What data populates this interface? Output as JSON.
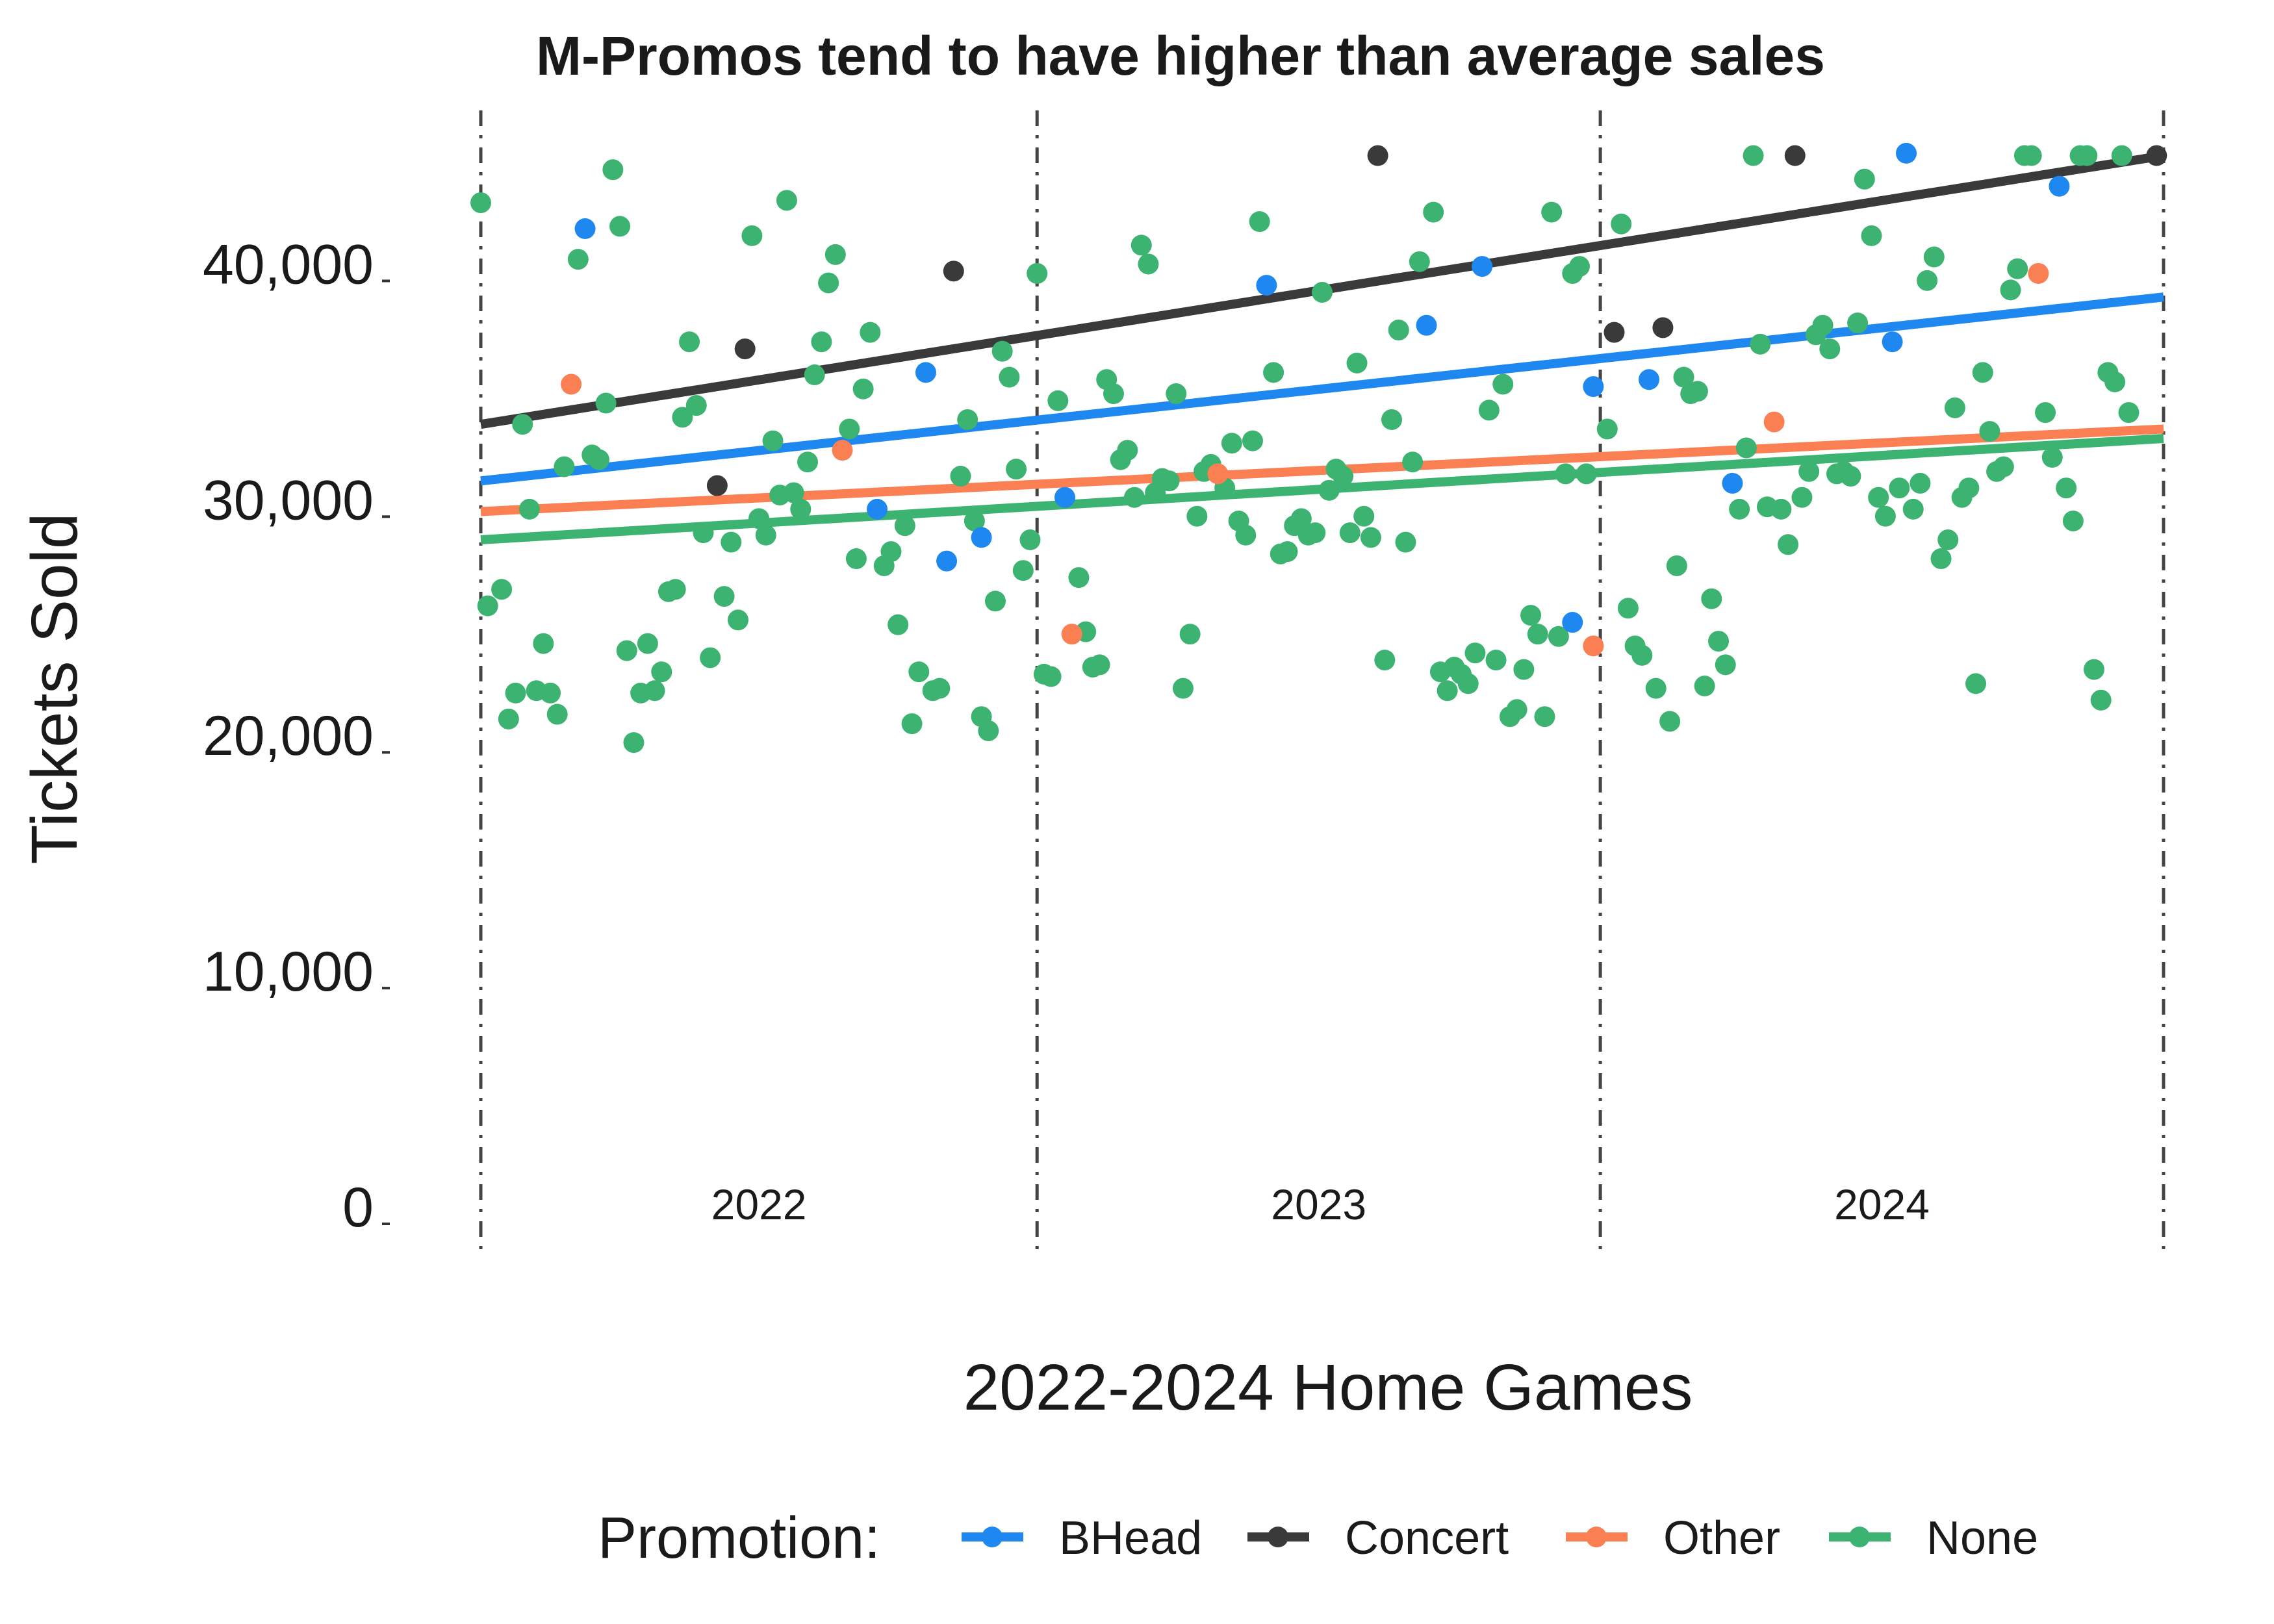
{
  "chart_data": {
    "type": "scatter",
    "title": "M-Promos tend to have higher than average sales",
    "xlabel": "2022-2024 Home Games",
    "ylabel": "Tickets Sold",
    "ylim": [
      0,
      45000
    ],
    "xlim": [
      1,
      243
    ],
    "y_ticks": [
      0,
      10000,
      20000,
      30000,
      40000
    ],
    "y_tick_labels": [
      "0",
      "10,000",
      "20,000",
      "30,000",
      "40,000"
    ],
    "season_labels": [
      "2022",
      "2023",
      "2024"
    ],
    "season_boundaries": [
      1,
      81,
      162,
      243
    ],
    "legend": {
      "title": "Promotion:",
      "position": "bottom"
    },
    "grid": false,
    "series": [
      {
        "name": "BHead",
        "color": "#1E88F0",
        "points": [
          [
            16,
            41500
          ],
          [
            58,
            29600
          ],
          [
            65,
            35400
          ],
          [
            68,
            27400
          ],
          [
            73,
            28400
          ],
          [
            85,
            30100
          ],
          [
            114,
            39100
          ],
          [
            137,
            37400
          ],
          [
            145,
            39900
          ],
          [
            158,
            24800
          ],
          [
            161,
            34800
          ],
          [
            169,
            35100
          ],
          [
            181,
            30700
          ],
          [
            206,
            44700
          ],
          [
            204,
            36700
          ],
          [
            228,
            43300
          ]
        ],
        "trend": [
          [
            1,
            30800
          ],
          [
            243,
            38600
          ]
        ]
      },
      {
        "name": "Concert",
        "color": "#3A3A3A",
        "points": [
          [
            35,
            30600
          ],
          [
            39,
            36400
          ],
          [
            69,
            39700
          ],
          [
            130,
            44600
          ],
          [
            164,
            37100
          ],
          [
            171,
            37300
          ],
          [
            190,
            44600
          ],
          [
            242,
            44600
          ]
        ],
        "trend": [
          [
            1,
            33200
          ],
          [
            243,
            44600
          ]
        ]
      },
      {
        "name": "Other",
        "color": "#FA7F53",
        "points": [
          [
            14,
            34900
          ],
          [
            53,
            32100
          ],
          [
            86,
            24300
          ],
          [
            107,
            31100
          ],
          [
            161,
            23800
          ],
          [
            187,
            33300
          ],
          [
            225,
            39600
          ]
        ],
        "trend": [
          [
            1,
            29500
          ],
          [
            243,
            33000
          ]
        ]
      },
      {
        "name": "None",
        "color": "#3CB371",
        "points": [
          [
            1,
            42600
          ],
          [
            2,
            25500
          ],
          [
            4,
            26200
          ],
          [
            5,
            20700
          ],
          [
            6,
            21800
          ],
          [
            7,
            33200
          ],
          [
            8,
            29600
          ],
          [
            9,
            21900
          ],
          [
            10,
            23900
          ],
          [
            11,
            21800
          ],
          [
            12,
            20900
          ],
          [
            13,
            31400
          ],
          [
            15,
            40200
          ],
          [
            17,
            31900
          ],
          [
            18,
            31700
          ],
          [
            19,
            34100
          ],
          [
            20,
            44000
          ],
          [
            21,
            41600
          ],
          [
            22,
            23600
          ],
          [
            23,
            19700
          ],
          [
            24,
            21800
          ],
          [
            25,
            23900
          ],
          [
            26,
            21900
          ],
          [
            27,
            22700
          ],
          [
            28,
            26100
          ],
          [
            29,
            26200
          ],
          [
            30,
            33500
          ],
          [
            31,
            36700
          ],
          [
            32,
            34000
          ],
          [
            33,
            28600
          ],
          [
            34,
            23300
          ],
          [
            36,
            25900
          ],
          [
            37,
            28200
          ],
          [
            38,
            24900
          ],
          [
            40,
            41200
          ],
          [
            41,
            29200
          ],
          [
            42,
            28500
          ],
          [
            43,
            32500
          ],
          [
            44,
            30200
          ],
          [
            45,
            42700
          ],
          [
            46,
            30300
          ],
          [
            47,
            29600
          ],
          [
            48,
            31600
          ],
          [
            49,
            35300
          ],
          [
            50,
            36700
          ],
          [
            51,
            39200
          ],
          [
            52,
            40400
          ],
          [
            54,
            33000
          ],
          [
            55,
            27500
          ],
          [
            56,
            34700
          ],
          [
            57,
            37100
          ],
          [
            59,
            27200
          ],
          [
            60,
            27800
          ],
          [
            61,
            24700
          ],
          [
            62,
            28900
          ],
          [
            63,
            20500
          ],
          [
            64,
            22700
          ],
          [
            66,
            21900
          ],
          [
            67,
            22000
          ],
          [
            70,
            31000
          ],
          [
            71,
            33400
          ],
          [
            72,
            29100
          ],
          [
            73,
            20800
          ],
          [
            74,
            20200
          ],
          [
            75,
            25700
          ],
          [
            76,
            36300
          ],
          [
            77,
            35200
          ],
          [
            78,
            31300
          ],
          [
            79,
            27000
          ],
          [
            80,
            28300
          ],
          [
            81,
            39600
          ],
          [
            82,
            22600
          ],
          [
            83,
            22500
          ],
          [
            84,
            34200
          ],
          [
            87,
            26700
          ],
          [
            88,
            24400
          ],
          [
            89,
            22900
          ],
          [
            90,
            23000
          ],
          [
            91,
            35100
          ],
          [
            92,
            34500
          ],
          [
            93,
            31700
          ],
          [
            94,
            32100
          ],
          [
            95,
            30100
          ],
          [
            96,
            40800
          ],
          [
            97,
            40000
          ],
          [
            98,
            30300
          ],
          [
            99,
            30900
          ],
          [
            100,
            30800
          ],
          [
            101,
            34500
          ],
          [
            102,
            22000
          ],
          [
            103,
            24300
          ],
          [
            104,
            29300
          ],
          [
            105,
            31200
          ],
          [
            106,
            31500
          ],
          [
            108,
            30500
          ],
          [
            109,
            32400
          ],
          [
            110,
            29100
          ],
          [
            111,
            28500
          ],
          [
            112,
            32500
          ],
          [
            113,
            41800
          ],
          [
            115,
            35400
          ],
          [
            116,
            27700
          ],
          [
            117,
            27800
          ],
          [
            118,
            28900
          ],
          [
            119,
            29200
          ],
          [
            120,
            28500
          ],
          [
            121,
            28600
          ],
          [
            122,
            38800
          ],
          [
            123,
            30400
          ],
          [
            124,
            31300
          ],
          [
            125,
            31000
          ],
          [
            126,
            28600
          ],
          [
            127,
            35800
          ],
          [
            128,
            29300
          ],
          [
            129,
            28400
          ],
          [
            131,
            23200
          ],
          [
            132,
            33400
          ],
          [
            133,
            37200
          ],
          [
            134,
            28200
          ],
          [
            135,
            31600
          ],
          [
            136,
            40100
          ],
          [
            138,
            42200
          ],
          [
            139,
            22700
          ],
          [
            140,
            21900
          ],
          [
            141,
            22900
          ],
          [
            142,
            22600
          ],
          [
            143,
            22200
          ],
          [
            144,
            23500
          ],
          [
            146,
            33800
          ],
          [
            147,
            23200
          ],
          [
            148,
            34900
          ],
          [
            149,
            20800
          ],
          [
            150,
            21100
          ],
          [
            151,
            22800
          ],
          [
            152,
            25100
          ],
          [
            153,
            24300
          ],
          [
            154,
            20800
          ],
          [
            155,
            42200
          ],
          [
            156,
            24200
          ],
          [
            157,
            31100
          ],
          [
            158,
            39600
          ],
          [
            159,
            39900
          ],
          [
            160,
            31100
          ],
          [
            163,
            33000
          ],
          [
            165,
            41700
          ],
          [
            166,
            25400
          ],
          [
            167,
            23800
          ],
          [
            168,
            23400
          ],
          [
            170,
            22000
          ],
          [
            172,
            20600
          ],
          [
            173,
            27200
          ],
          [
            174,
            35200
          ],
          [
            175,
            34500
          ],
          [
            176,
            34600
          ],
          [
            177,
            22100
          ],
          [
            178,
            25800
          ],
          [
            179,
            24000
          ],
          [
            180,
            23000
          ],
          [
            182,
            29600
          ],
          [
            183,
            32200
          ],
          [
            184,
            44600
          ],
          [
            185,
            36600
          ],
          [
            186,
            29700
          ],
          [
            188,
            29600
          ],
          [
            189,
            28100
          ],
          [
            191,
            30100
          ],
          [
            192,
            31200
          ],
          [
            193,
            37000
          ],
          [
            194,
            37400
          ],
          [
            195,
            36400
          ],
          [
            196,
            31100
          ],
          [
            197,
            31200
          ],
          [
            198,
            31000
          ],
          [
            199,
            37500
          ],
          [
            200,
            43600
          ],
          [
            201,
            41200
          ],
          [
            202,
            30100
          ],
          [
            203,
            29300
          ],
          [
            205,
            30500
          ],
          [
            207,
            29600
          ],
          [
            208,
            30700
          ],
          [
            209,
            39300
          ],
          [
            210,
            40300
          ],
          [
            211,
            27500
          ],
          [
            212,
            28300
          ],
          [
            213,
            33900
          ],
          [
            214,
            30100
          ],
          [
            215,
            30500
          ],
          [
            216,
            22200
          ],
          [
            217,
            35400
          ],
          [
            218,
            32900
          ],
          [
            219,
            31200
          ],
          [
            220,
            31400
          ],
          [
            221,
            38900
          ],
          [
            222,
            39800
          ],
          [
            223,
            44600
          ],
          [
            224,
            44600
          ],
          [
            226,
            33700
          ],
          [
            227,
            31800
          ],
          [
            229,
            30500
          ],
          [
            230,
            29100
          ],
          [
            231,
            44600
          ],
          [
            232,
            44600
          ],
          [
            233,
            22800
          ],
          [
            234,
            21500
          ],
          [
            235,
            35400
          ],
          [
            236,
            35000
          ],
          [
            237,
            44600
          ],
          [
            238,
            33700
          ]
        ],
        "trend": [
          [
            1,
            28300
          ],
          [
            243,
            32600
          ]
        ]
      }
    ]
  }
}
